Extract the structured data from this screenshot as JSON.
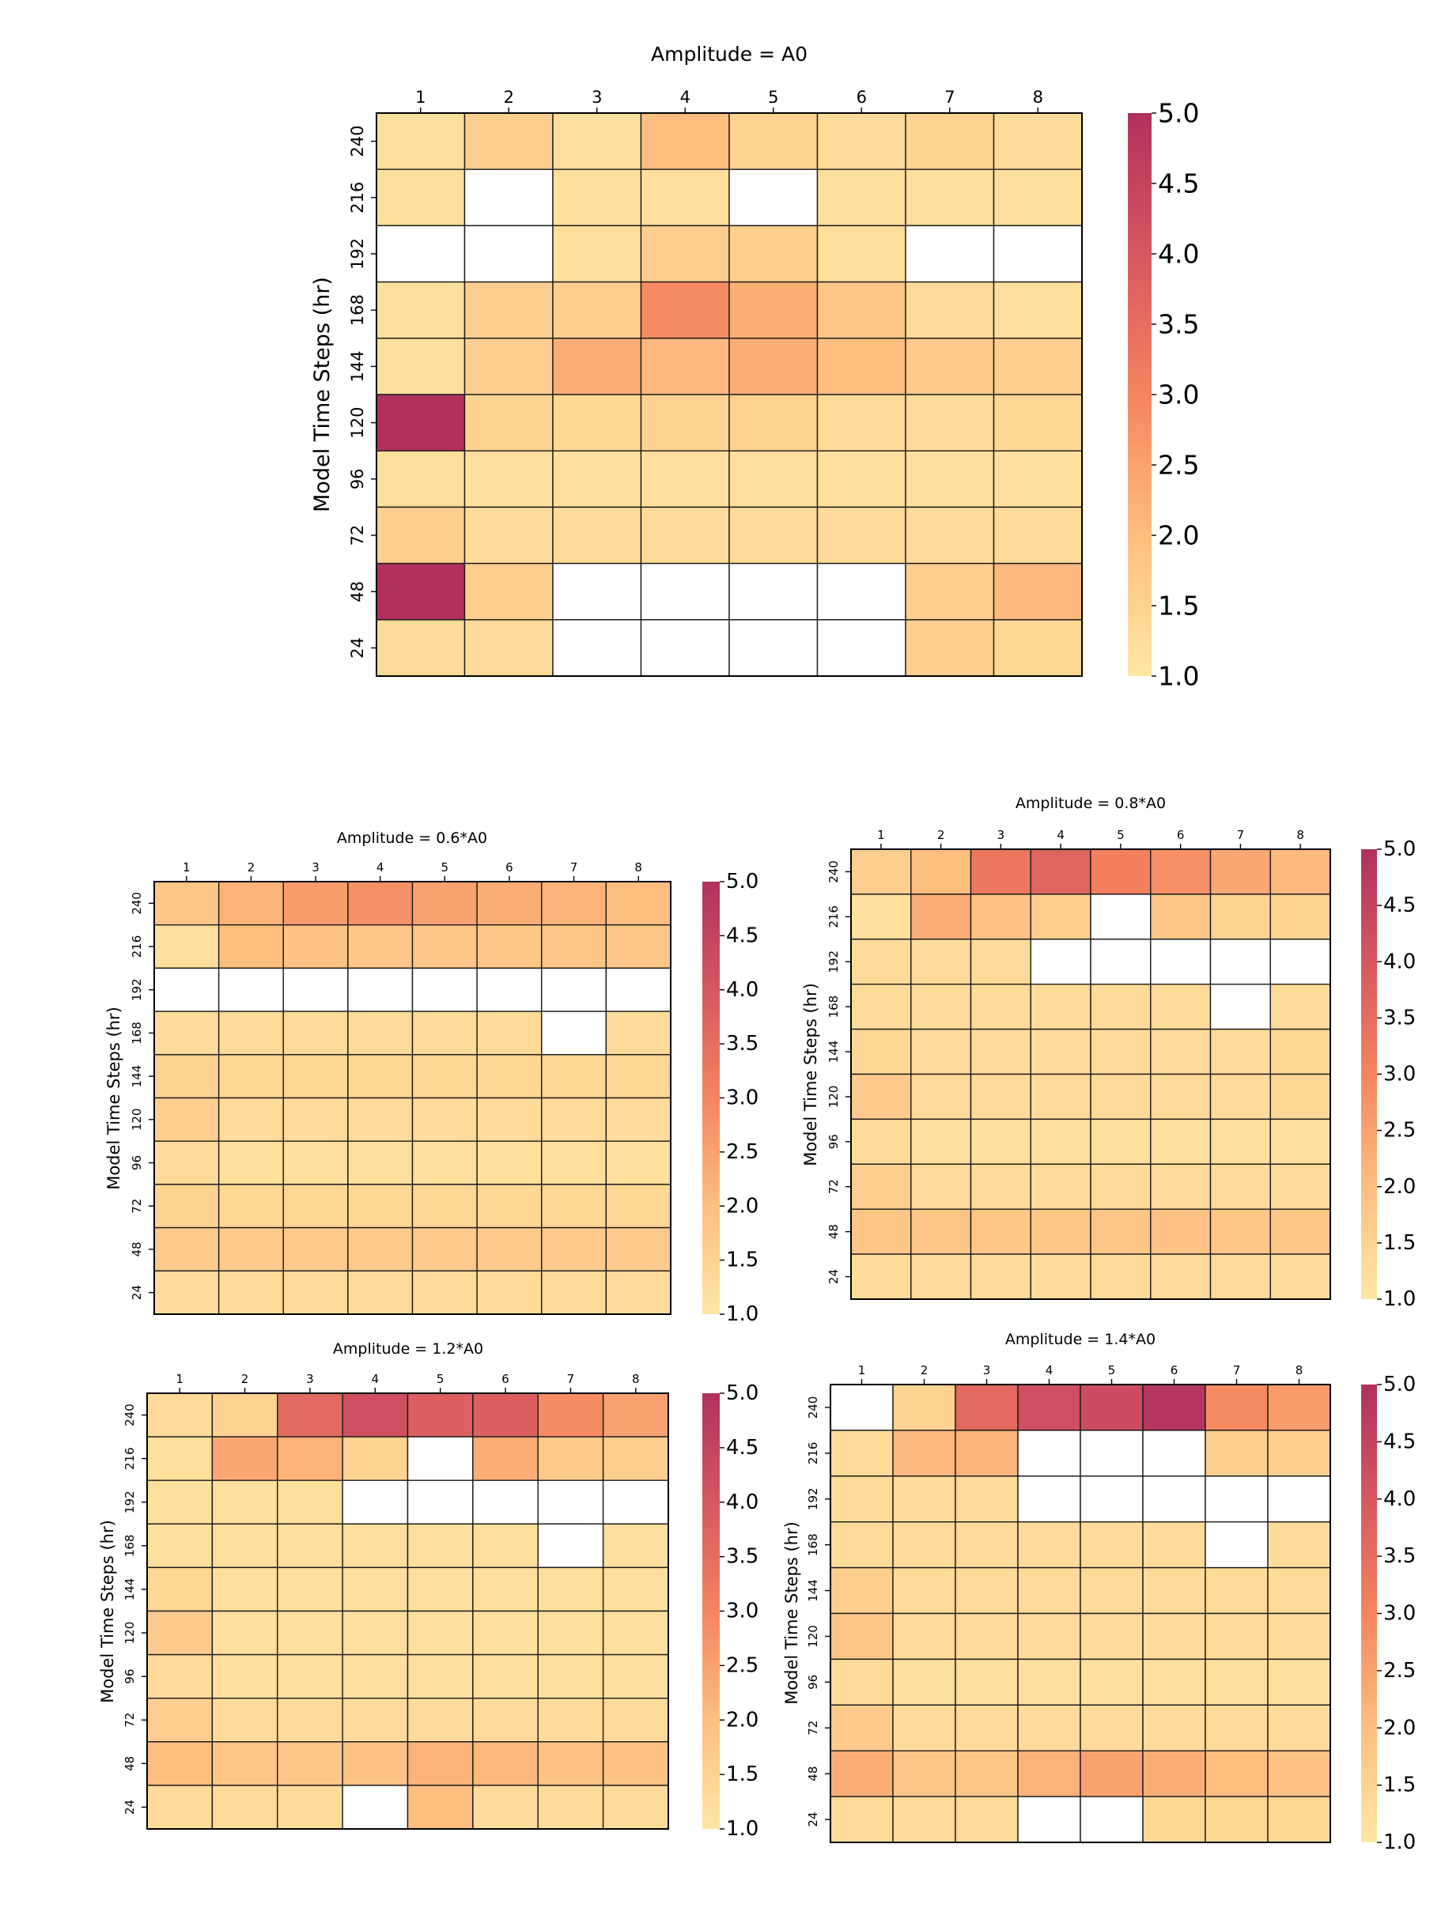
{
  "chart_data": [
    {
      "type": "heatmap",
      "title": "Amplitude = A0",
      "xlabel": "",
      "ylabel": "Model Time Steps (hr)",
      "x_categories": [
        "1",
        "2",
        "3",
        "4",
        "5",
        "6",
        "7",
        "8"
      ],
      "y_categories": [
        "240",
        "216",
        "192",
        "168",
        "144",
        "120",
        "96",
        "72",
        "48",
        "24"
      ],
      "values": [
        [
          1.2,
          1.6,
          1.2,
          2.0,
          1.5,
          1.3,
          1.5,
          1.3
        ],
        [
          1.2,
          null,
          1.2,
          1.2,
          null,
          1.2,
          1.2,
          1.2
        ],
        [
          null,
          null,
          1.2,
          1.6,
          1.6,
          1.2,
          null,
          null
        ],
        [
          1.2,
          1.6,
          1.6,
          2.9,
          2.3,
          1.8,
          1.3,
          1.2
        ],
        [
          1.2,
          1.6,
          2.3,
          2.1,
          2.3,
          2.0,
          1.7,
          1.6
        ],
        [
          5.0,
          1.5,
          1.4,
          1.5,
          1.5,
          1.3,
          1.3,
          1.4
        ],
        [
          1.2,
          1.2,
          1.2,
          1.2,
          1.2,
          1.2,
          1.2,
          1.2
        ],
        [
          1.6,
          1.3,
          1.3,
          1.3,
          1.3,
          1.3,
          1.3,
          1.3
        ],
        [
          5.0,
          1.6,
          null,
          null,
          null,
          null,
          1.6,
          2.1
        ],
        [
          1.3,
          1.3,
          null,
          null,
          null,
          null,
          1.6,
          1.4
        ]
      ],
      "colorbar": {
        "min": 1.0,
        "max": 5.0,
        "ticks": [
          "1.0",
          "1.5",
          "2.0",
          "2.5",
          "3.0",
          "3.5",
          "4.0",
          "4.5",
          "5.0"
        ]
      },
      "colormap": [
        "#fee7a3",
        "#fdbe80",
        "#f5855f",
        "#d6575f",
        "#b0315e"
      ]
    },
    {
      "type": "heatmap",
      "title": "Amplitude = 0.6*A0",
      "xlabel": "",
      "ylabel": "Model Time Steps (hr)",
      "x_categories": [
        "1",
        "2",
        "3",
        "4",
        "5",
        "6",
        "7",
        "8"
      ],
      "y_categories": [
        "240",
        "216",
        "192",
        "168",
        "144",
        "120",
        "96",
        "72",
        "48",
        "24"
      ],
      "values": [
        [
          1.8,
          2.2,
          2.6,
          2.8,
          2.5,
          2.3,
          2.2,
          2.0
        ],
        [
          1.2,
          2.0,
          1.9,
          1.8,
          1.8,
          1.8,
          1.8,
          1.8
        ],
        [
          null,
          null,
          null,
          null,
          null,
          null,
          null,
          null
        ],
        [
          1.3,
          1.3,
          1.3,
          1.3,
          1.3,
          1.3,
          null,
          1.3
        ],
        [
          1.5,
          1.4,
          1.4,
          1.4,
          1.4,
          1.4,
          1.4,
          1.4
        ],
        [
          1.6,
          1.3,
          1.3,
          1.3,
          1.3,
          1.3,
          1.3,
          1.3
        ],
        [
          1.3,
          1.2,
          1.2,
          1.2,
          1.2,
          1.2,
          1.2,
          1.2
        ],
        [
          1.5,
          1.4,
          1.4,
          1.4,
          1.4,
          1.4,
          1.4,
          1.4
        ],
        [
          1.7,
          1.7,
          1.7,
          1.7,
          1.7,
          1.7,
          1.7,
          1.7
        ],
        [
          1.3,
          1.3,
          1.3,
          1.3,
          1.3,
          1.3,
          1.3,
          1.3
        ]
      ],
      "colorbar": {
        "min": 1.0,
        "max": 5.0,
        "ticks": [
          "1.0",
          "1.5",
          "2.0",
          "2.5",
          "3.0",
          "3.5",
          "4.0",
          "4.5",
          "5.0"
        ]
      },
      "colormap": [
        "#fee7a3",
        "#fdbe80",
        "#f5855f",
        "#d6575f",
        "#b0315e"
      ]
    },
    {
      "type": "heatmap",
      "title": "Amplitude = 0.8*A0",
      "xlabel": "",
      "ylabel": "Model Time Steps (hr)",
      "x_categories": [
        "1",
        "2",
        "3",
        "4",
        "5",
        "6",
        "7",
        "8"
      ],
      "y_categories": [
        "240",
        "216",
        "192",
        "168",
        "144",
        "120",
        "96",
        "72",
        "48",
        "24"
      ],
      "values": [
        [
          1.6,
          2.0,
          3.3,
          3.7,
          3.1,
          2.8,
          2.4,
          2.1
        ],
        [
          1.2,
          2.3,
          1.9,
          1.6,
          null,
          1.8,
          1.5,
          1.5
        ],
        [
          1.3,
          1.3,
          1.3,
          null,
          null,
          null,
          null,
          null
        ],
        [
          1.3,
          1.3,
          1.3,
          1.3,
          1.3,
          1.3,
          null,
          1.3
        ],
        [
          1.4,
          1.3,
          1.3,
          1.3,
          1.3,
          1.3,
          1.3,
          1.4
        ],
        [
          1.7,
          1.3,
          1.3,
          1.3,
          1.3,
          1.3,
          1.3,
          1.4
        ],
        [
          1.3,
          1.2,
          1.2,
          1.2,
          1.2,
          1.2,
          1.2,
          1.2
        ],
        [
          1.6,
          1.3,
          1.3,
          1.3,
          1.3,
          1.3,
          1.3,
          1.3
        ],
        [
          1.8,
          1.8,
          1.8,
          1.8,
          1.8,
          1.9,
          1.8,
          1.8
        ],
        [
          1.3,
          1.3,
          1.3,
          1.3,
          1.3,
          1.3,
          1.3,
          1.3
        ]
      ],
      "colorbar": {
        "min": 1.0,
        "max": 5.0,
        "ticks": [
          "1.0",
          "1.5",
          "2.0",
          "2.5",
          "3.0",
          "3.5",
          "4.0",
          "4.5",
          "5.0"
        ]
      },
      "colormap": [
        "#fee7a3",
        "#fdbe80",
        "#f5855f",
        "#d6575f",
        "#b0315e"
      ]
    },
    {
      "type": "heatmap",
      "title": "Amplitude = 1.2*A0",
      "xlabel": "",
      "ylabel": "Model Time Steps (hr)",
      "x_categories": [
        "1",
        "2",
        "3",
        "4",
        "5",
        "6",
        "7",
        "8"
      ],
      "y_categories": [
        "240",
        "216",
        "192",
        "168",
        "144",
        "120",
        "96",
        "72",
        "48",
        "24"
      ],
      "values": [
        [
          1.3,
          1.5,
          3.6,
          4.2,
          3.8,
          3.8,
          2.9,
          2.5
        ],
        [
          1.2,
          2.4,
          2.2,
          1.5,
          null,
          2.3,
          1.7,
          1.6
        ],
        [
          1.2,
          1.2,
          1.2,
          null,
          null,
          null,
          null,
          null
        ],
        [
          1.2,
          1.2,
          1.2,
          1.2,
          1.2,
          1.2,
          null,
          1.2
        ],
        [
          1.4,
          1.2,
          1.2,
          1.2,
          1.2,
          1.2,
          1.2,
          1.2
        ],
        [
          1.7,
          1.2,
          1.2,
          1.2,
          1.2,
          1.2,
          1.2,
          1.2
        ],
        [
          1.3,
          1.2,
          1.2,
          1.2,
          1.2,
          1.2,
          1.2,
          1.2
        ],
        [
          1.6,
          1.3,
          1.3,
          1.3,
          1.3,
          1.3,
          1.3,
          1.3
        ],
        [
          2.0,
          1.8,
          1.8,
          1.9,
          2.2,
          2.1,
          1.9,
          1.9
        ],
        [
          1.3,
          1.3,
          1.3,
          null,
          2.0,
          1.3,
          1.3,
          1.3
        ]
      ],
      "colorbar": {
        "min": 1.0,
        "max": 5.0,
        "ticks": [
          "1.0",
          "1.5",
          "2.0",
          "2.5",
          "3.0",
          "3.5",
          "4.0",
          "4.5",
          "5.0"
        ]
      },
      "colormap": [
        "#fee7a3",
        "#fdbe80",
        "#f5855f",
        "#d6575f",
        "#b0315e"
      ]
    },
    {
      "type": "heatmap",
      "title": "Amplitude = 1.4*A0",
      "xlabel": "",
      "ylabel": "Model Time Steps (hr)",
      "x_categories": [
        "1",
        "2",
        "3",
        "4",
        "5",
        "6",
        "7",
        "8"
      ],
      "y_categories": [
        "240",
        "216",
        "192",
        "168",
        "144",
        "120",
        "96",
        "72",
        "48",
        "24"
      ],
      "values": [
        [
          null,
          1.5,
          3.6,
          4.2,
          4.3,
          4.9,
          2.9,
          2.6
        ],
        [
          1.3,
          2.1,
          2.2,
          null,
          null,
          null,
          1.6,
          1.6
        ],
        [
          1.3,
          1.3,
          1.3,
          null,
          null,
          null,
          null,
          null
        ],
        [
          1.3,
          1.3,
          1.3,
          1.3,
          1.3,
          1.3,
          null,
          1.3
        ],
        [
          1.6,
          1.3,
          1.3,
          1.3,
          1.3,
          1.3,
          1.3,
          1.3
        ],
        [
          1.8,
          1.3,
          1.3,
          1.3,
          1.3,
          1.3,
          1.3,
          1.3
        ],
        [
          1.3,
          1.2,
          1.2,
          1.2,
          1.2,
          1.2,
          1.2,
          1.2
        ],
        [
          1.7,
          1.3,
          1.3,
          1.3,
          1.3,
          1.3,
          1.3,
          1.3
        ],
        [
          2.3,
          1.8,
          1.8,
          2.2,
          2.5,
          2.3,
          2.0,
          1.9
        ],
        [
          1.3,
          1.3,
          1.3,
          null,
          null,
          1.4,
          1.4,
          1.4
        ]
      ],
      "colorbar": {
        "min": 1.0,
        "max": 5.0,
        "ticks": [
          "1.0",
          "1.5",
          "2.0",
          "2.5",
          "3.0",
          "3.5",
          "4.0",
          "4.5",
          "5.0"
        ]
      },
      "colormap": [
        "#fee7a3",
        "#fdbe80",
        "#f5855f",
        "#d6575f",
        "#b0315e"
      ]
    }
  ]
}
